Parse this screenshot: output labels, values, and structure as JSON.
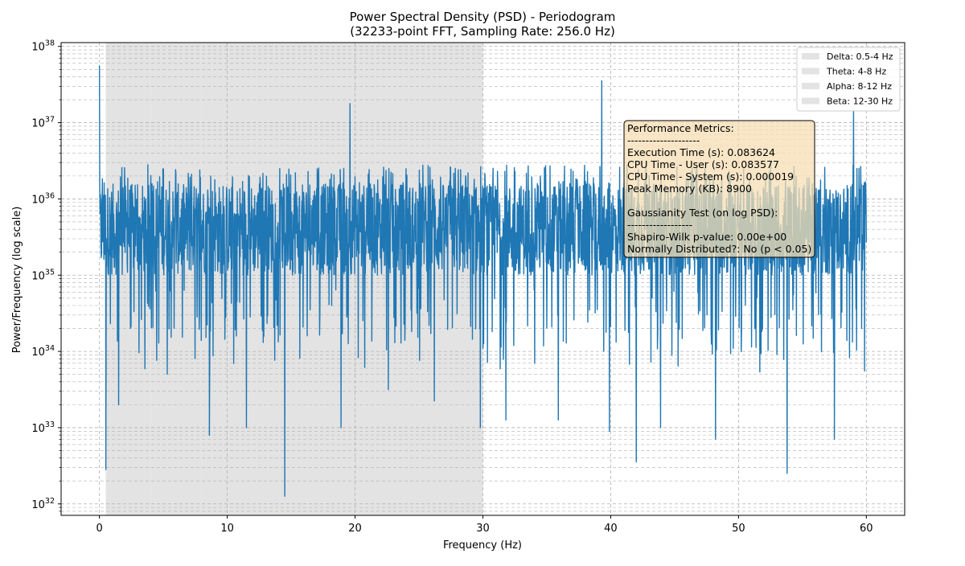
{
  "chart_data": {
    "type": "line",
    "title_lines": [
      "Power Spectral Density (PSD) - Periodogram",
      "(32233-point FFT, Sampling Rate: 256.0 Hz)"
    ],
    "xlabel": "Frequency (Hz)",
    "ylabel": "Power/Frequency (log scale)",
    "xlim": [
      -3,
      63
    ],
    "ylim_exp": [
      31.85,
      38.05
    ],
    "y_scale": "log",
    "x_ticks": [
      0,
      10,
      20,
      30,
      40,
      50,
      60
    ],
    "y_tick_exps": [
      32,
      33,
      34,
      35,
      36,
      37,
      38
    ],
    "y_tick_base": "10",
    "grid": true,
    "line_color": "#1f77b4",
    "band_color": "#e3e3e3",
    "bands": [
      {
        "name": "Delta: 0.5-4 Hz",
        "range": [
          0.5,
          4
        ]
      },
      {
        "name": "Theta: 4-8 Hz",
        "range": [
          4,
          8
        ]
      },
      {
        "name": "Alpha: 8-12 Hz",
        "range": [
          8,
          12
        ]
      },
      {
        "name": "Beta: 12-30 Hz",
        "range": [
          12,
          30
        ]
      }
    ],
    "legend_placement": "top-right",
    "series": [
      {
        "x_range": [
          0,
          60
        ],
        "typical_log10_range": [
          35.0,
          36.2
        ],
        "noise_floor_log10": [
          34.3,
          34.9
        ],
        "peaks": [
          {
            "x": 0.0,
            "log10": 37.75
          },
          {
            "x": 19.6,
            "log10": 37.25
          },
          {
            "x": 39.3,
            "log10": 37.55
          },
          {
            "x": 59.0,
            "log10": 37.15
          }
        ],
        "dips": [
          {
            "x": 0.5,
            "log10": 32.45
          },
          {
            "x": 14.5,
            "log10": 32.1
          },
          {
            "x": 8.6,
            "log10": 32.9
          },
          {
            "x": 11.5,
            "log10": 33.0
          },
          {
            "x": 18.9,
            "log10": 33.0
          },
          {
            "x": 29.8,
            "log10": 33.0
          },
          {
            "x": 31.8,
            "log10": 33.1
          },
          {
            "x": 35.9,
            "log10": 33.1
          },
          {
            "x": 39.9,
            "log10": 32.95
          },
          {
            "x": 42.0,
            "log10": 32.55
          },
          {
            "x": 43.9,
            "log10": 33.0
          },
          {
            "x": 48.2,
            "log10": 32.85
          },
          {
            "x": 53.8,
            "log10": 32.4
          },
          {
            "x": 57.5,
            "log10": 32.85
          },
          {
            "x": 1.5,
            "log10": 33.3
          },
          {
            "x": 5.3,
            "log10": 33.7
          },
          {
            "x": 22.6,
            "log10": 33.5
          },
          {
            "x": 26.2,
            "log10": 33.35
          }
        ]
      }
    ],
    "info_box_lines": [
      "Performance Metrics:",
      "--------------------",
      "Execution Time (s): 0.083624",
      "CPU Time - User (s): 0.083577",
      "CPU Time - System (s): 0.000019",
      "Peak Memory (KB): 8900",
      "",
      "Gaussianity Test (on log PSD):",
      "------------------",
      "Shapiro-Wilk p-value: 0.00e+00",
      "Normally Distributed?: No (p < 0.05)"
    ],
    "info_box_fill": "#f5deb3"
  }
}
